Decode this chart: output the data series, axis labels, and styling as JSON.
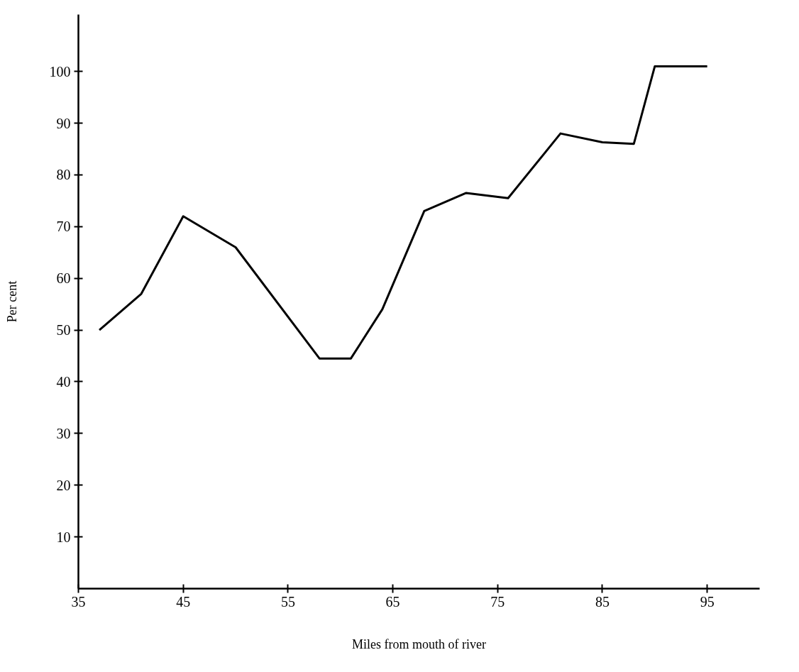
{
  "chart_data": {
    "type": "line",
    "xlabel": "Miles from mouth of river",
    "ylabel": "Per cent",
    "x": [
      37,
      41,
      45,
      50,
      58,
      61,
      64,
      68,
      72,
      76,
      81,
      85,
      88,
      90,
      95
    ],
    "series": [
      {
        "color": "#000000",
        "values": [
          50,
          57,
          72,
          66,
          44.5,
          44.5,
          54,
          73,
          76.5,
          75.5,
          88,
          86.3,
          86,
          101,
          101
        ]
      }
    ],
    "xlim": [
      35,
      100
    ],
    "ylim": [
      0,
      111
    ],
    "xticks": [
      35,
      45,
      55,
      65,
      75,
      85,
      95
    ],
    "yticks": [
      10,
      20,
      30,
      40,
      50,
      60,
      70,
      80,
      90,
      100
    ],
    "line_style": "solid"
  }
}
